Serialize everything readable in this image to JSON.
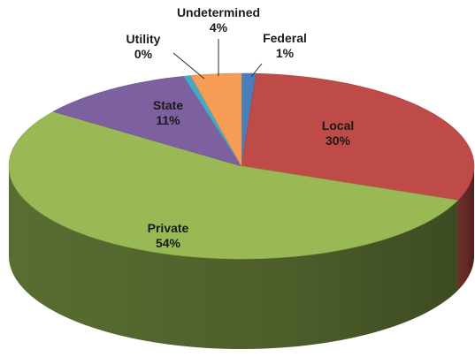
{
  "chart_data": {
    "type": "pie",
    "style": "3d-tilted",
    "slices": [
      {
        "label": "Federal",
        "value": 1,
        "display": "1%",
        "color": "#4a7ebb"
      },
      {
        "label": "Local",
        "value": 30,
        "display": "30%",
        "color": "#be4b48"
      },
      {
        "label": "Private",
        "value": 54,
        "display": "54%",
        "color": "#98b954"
      },
      {
        "label": "State",
        "value": 11,
        "display": "11%",
        "color": "#7d60a0"
      },
      {
        "label": "Utility",
        "value": 0.5,
        "display": "0%",
        "color": "#46aac5"
      },
      {
        "label": "Undetermined",
        "value": 3.5,
        "display": "4%",
        "color": "#f59d56"
      }
    ],
    "start_angle_deg": 0,
    "direction": "clockwise-from-top",
    "legend": "none",
    "data_labels": "category-and-percent"
  }
}
